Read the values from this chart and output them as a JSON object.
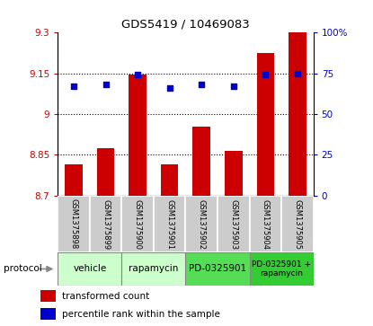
{
  "title": "GDS5419 / 10469083",
  "samples": [
    "GSM1375898",
    "GSM1375899",
    "GSM1375900",
    "GSM1375901",
    "GSM1375902",
    "GSM1375903",
    "GSM1375904",
    "GSM1375905"
  ],
  "transformed_counts": [
    8.815,
    8.875,
    9.145,
    8.815,
    8.955,
    8.865,
    9.225,
    9.3
  ],
  "percentile_ranks": [
    67,
    68,
    74,
    66,
    68,
    67,
    74,
    75
  ],
  "ylim_left": [
    8.7,
    9.3
  ],
  "ylim_right": [
    0,
    100
  ],
  "yticks_left": [
    8.7,
    8.85,
    9.0,
    9.15,
    9.3
  ],
  "ytick_labels_left": [
    "8.7",
    "8.85",
    "9",
    "9.15",
    "9.3"
  ],
  "yticks_right": [
    0,
    25,
    50,
    75,
    100
  ],
  "ytick_labels_right": [
    "0",
    "25",
    "50",
    "75",
    "100%"
  ],
  "bar_color": "#cc0000",
  "dot_color": "#0000cc",
  "base_value": 8.7,
  "label_color_left": "#cc0000",
  "label_color_right": "#0000cc",
  "sample_box_color": "#cccccc",
  "protocol_groups": [
    {
      "label": "vehicle",
      "start": 0,
      "end": 1,
      "color": "#ccffcc"
    },
    {
      "label": "rapamycin",
      "start": 2,
      "end": 3,
      "color": "#ccffcc"
    },
    {
      "label": "PD-0325901",
      "start": 4,
      "end": 5,
      "color": "#55dd55"
    },
    {
      "label": "PD-0325901 +\nrapamycin",
      "start": 6,
      "end": 7,
      "color": "#33cc33"
    }
  ],
  "legend_items": [
    {
      "label": "transformed count",
      "color": "#cc0000"
    },
    {
      "label": "percentile rank within the sample",
      "color": "#0000cc"
    }
  ]
}
